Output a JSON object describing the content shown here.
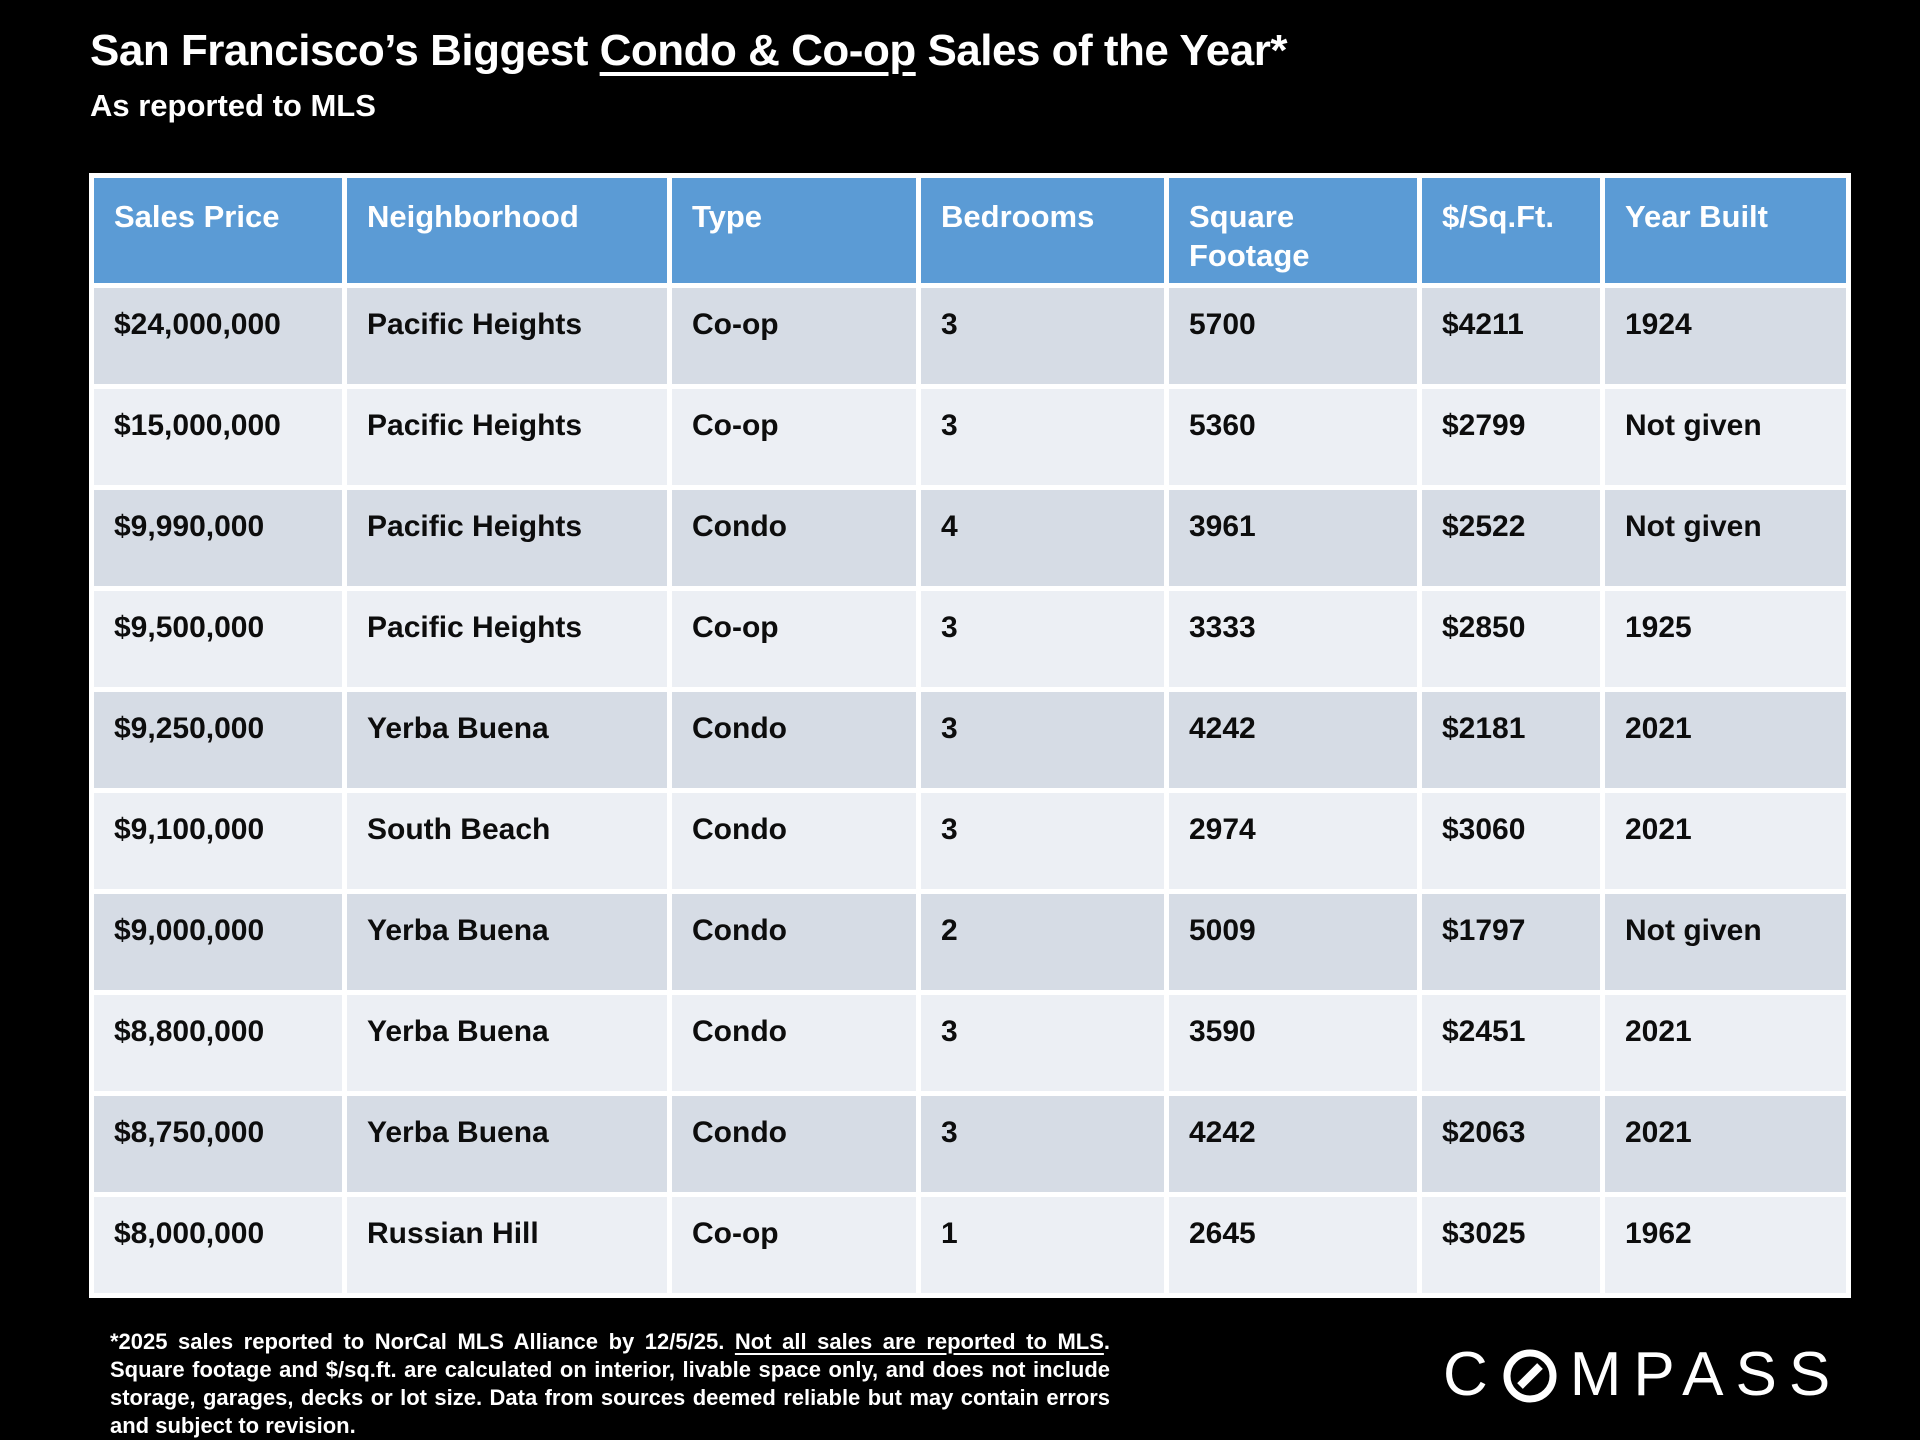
{
  "title": {
    "prefix": "San Francisco’s Biggest ",
    "underlined": "Condo & Co-op",
    "suffix": " Sales of the Year*"
  },
  "subtitle": "As reported to MLS",
  "table": {
    "columns": [
      "Sales Price",
      "Neighborhood",
      "Type",
      "Bedrooms",
      "Square Footage",
      "$/Sq.Ft.",
      "Year Built"
    ],
    "rows": [
      [
        "$24,000,000",
        "Pacific Heights",
        "Co-op",
        "3",
        "5700",
        "$4211",
        "1924"
      ],
      [
        "$15,000,000",
        "Pacific Heights",
        "Co-op",
        "3",
        "5360",
        "$2799",
        "Not given"
      ],
      [
        "$9,990,000",
        "Pacific Heights",
        "Condo",
        "4",
        "3961",
        "$2522",
        "Not given"
      ],
      [
        "$9,500,000",
        "Pacific Heights",
        "Co-op",
        "3",
        "3333",
        "$2850",
        "1925"
      ],
      [
        "$9,250,000",
        "Yerba Buena",
        "Condo",
        "3",
        "4242",
        "$2181",
        "2021"
      ],
      [
        "$9,100,000",
        "South Beach",
        "Condo",
        "3",
        "2974",
        "$3060",
        "2021"
      ],
      [
        "$9,000,000",
        "Yerba Buena",
        "Condo",
        "2",
        "5009",
        "$1797",
        "Not given"
      ],
      [
        "$8,800,000",
        "Yerba Buena",
        "Condo",
        "3",
        "3590",
        "$2451",
        "2021"
      ],
      [
        "$8,750,000",
        "Yerba Buena",
        "Condo",
        "3",
        "4242",
        "$2063",
        "2021"
      ],
      [
        "$8,000,000",
        "Russian Hill",
        "Co-op",
        "1",
        "2645",
        "$3025",
        "1962"
      ]
    ]
  },
  "footnote": {
    "part1": "*2025 sales reported to NorCal MLS Alliance by 12/5/25. ",
    "underlined": "Not all sales are reported to MLS",
    "part2": ". Square footage and $/sq.ft. are calculated on interior, livable space only, and does not include storage, garages, decks or lot size. Data from sources deemed reliable but may contain errors and subject to revision."
  },
  "logo": {
    "first_letter": "C",
    "rest_letters": "MPASS",
    "name": "COMPASS"
  },
  "colors": {
    "background": "#000000",
    "header_bg": "#5B9BD5",
    "header_text": "#FFFFFF",
    "row_odd": "#D6DCE5",
    "row_even": "#ECEFF4",
    "grid": "#FFFFFF",
    "cell_text": "#0D0D0D",
    "title_text": "#FFFFFF"
  }
}
